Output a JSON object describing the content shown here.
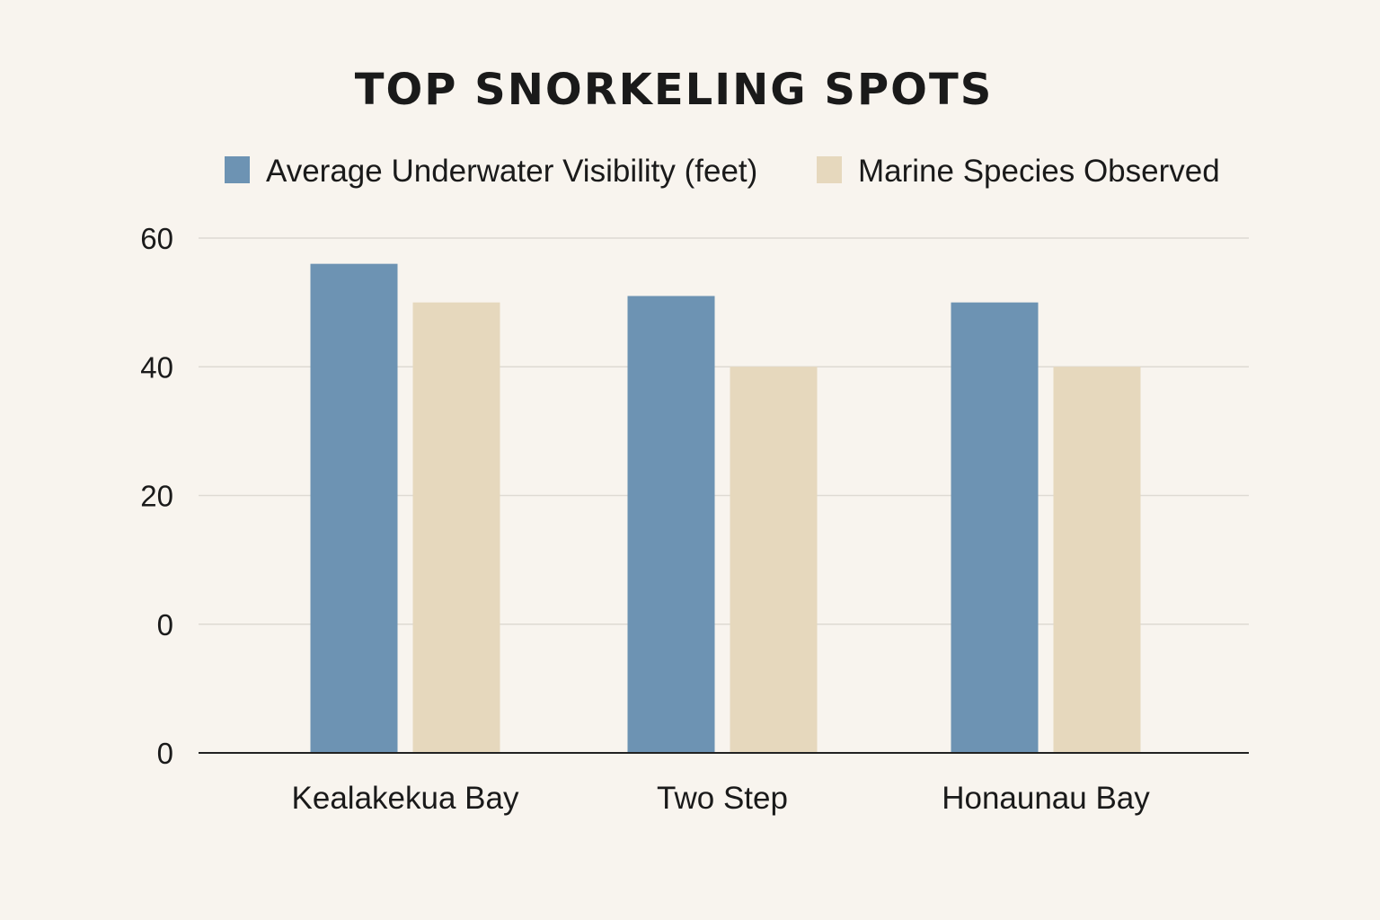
{
  "chart_data": {
    "type": "bar",
    "title": "TOP SNORKELING SPOTS",
    "categories": [
      "Kealakekua Bay",
      "Two Step",
      "Honaunau Bay"
    ],
    "series": [
      {
        "name": "Average Underwater Visibility (feet)",
        "color": "#6d93b3",
        "values": [
          56,
          51,
          50
        ]
      },
      {
        "name": "Marine Species Observed",
        "color": "#e6d8bd",
        "values": [
          50,
          40,
          40
        ]
      }
    ],
    "y_tick_labels": [
      "0",
      "0",
      "20",
      "40",
      "60"
    ],
    "ylim": [
      -20,
      60
    ],
    "grid": true,
    "legend_position": "top"
  }
}
